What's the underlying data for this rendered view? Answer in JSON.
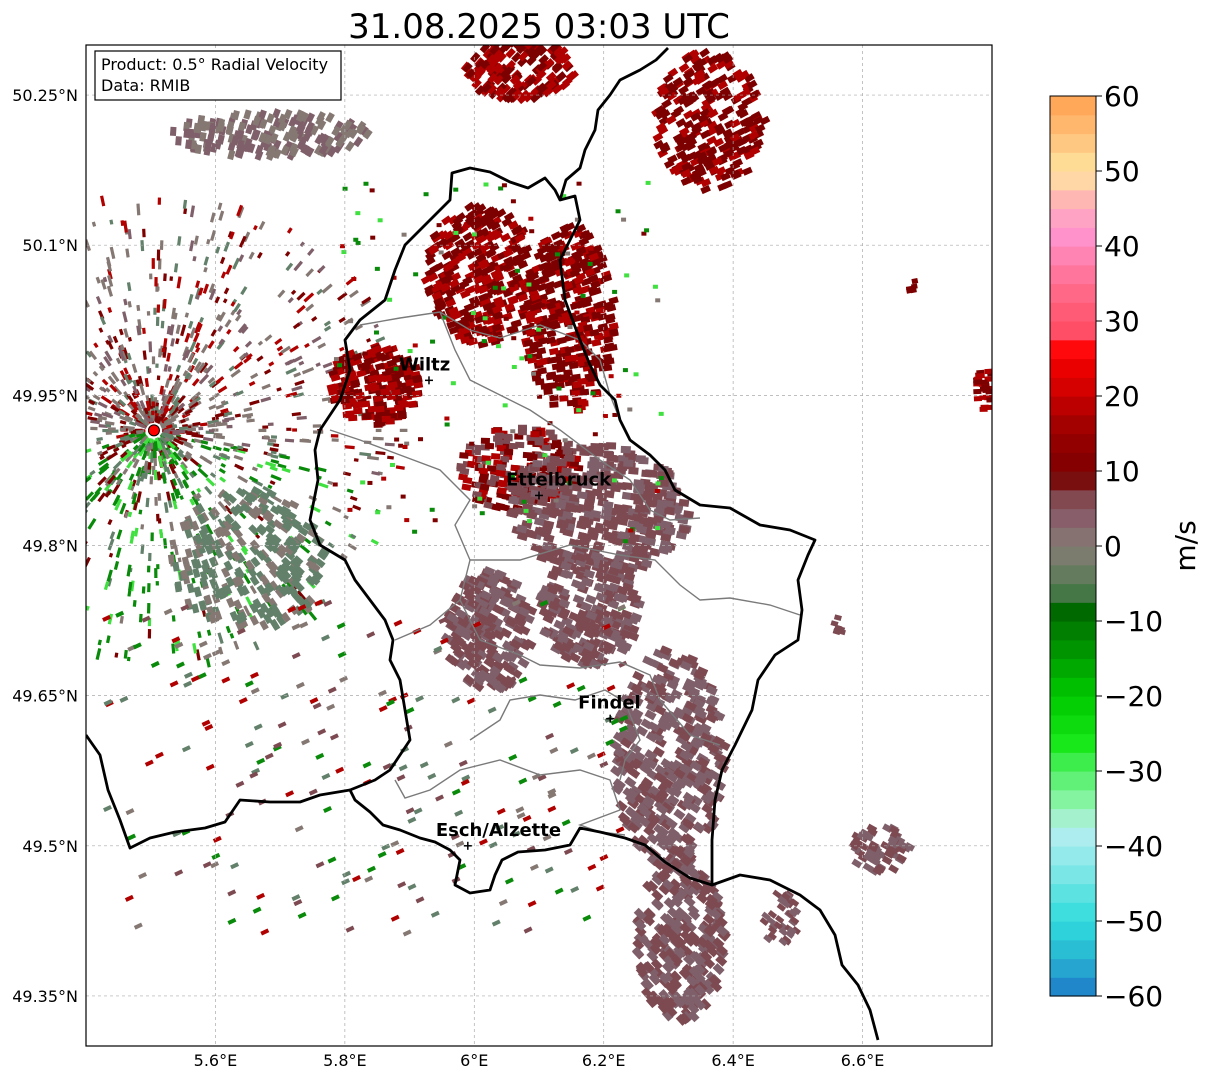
{
  "title": "31.08.2025 03:03 UTC",
  "info": {
    "product": "Product: 0.5° Radial Velocity",
    "data": "Data: RMIB"
  },
  "axes": {
    "lon_ticks": [
      {
        "value": 5.6,
        "label": "5.6°E"
      },
      {
        "value": 5.8,
        "label": "5.8°E"
      },
      {
        "value": 6.0,
        "label": "6°E"
      },
      {
        "value": 6.2,
        "label": "6.2°E"
      },
      {
        "value": 6.4,
        "label": "6.4°E"
      },
      {
        "value": 6.6,
        "label": "6.6°E"
      }
    ],
    "lat_ticks": [
      {
        "value": 50.25,
        "label": "50.25°N"
      },
      {
        "value": 50.1,
        "label": "50.1°N"
      },
      {
        "value": 49.95,
        "label": "49.95°N"
      },
      {
        "value": 49.8,
        "label": "49.8°N"
      },
      {
        "value": 49.65,
        "label": "49.65°N"
      },
      {
        "value": 49.5,
        "label": "49.5°N"
      },
      {
        "value": 49.35,
        "label": "49.35°N"
      }
    ],
    "lon_range": [
      5.4,
      6.8
    ],
    "lat_range": [
      49.3,
      50.3
    ],
    "grid": true
  },
  "cities": [
    {
      "name": "Wiltz",
      "lon": 5.93,
      "lat": 49.965
    },
    {
      "name": "Ettelbruck",
      "lon": 6.1,
      "lat": 49.85
    },
    {
      "name": "Findel",
      "lon": 6.21,
      "lat": 49.627
    },
    {
      "name": "Esch/Alzette",
      "lon": 5.99,
      "lat": 49.5
    }
  ],
  "radar_site": {
    "lon": 5.505,
    "lat": 49.915,
    "color": "#ff0000"
  },
  "colorbar": {
    "label": "m/s",
    "min": -60,
    "max": 60,
    "ticks": [
      {
        "value": 60,
        "label": "60"
      },
      {
        "value": 50,
        "label": "50"
      },
      {
        "value": 40,
        "label": "40"
      },
      {
        "value": 30,
        "label": "30"
      },
      {
        "value": 20,
        "label": "20"
      },
      {
        "value": 10,
        "label": "10"
      },
      {
        "value": 0,
        "label": "0"
      },
      {
        "value": -10,
        "label": "−10"
      },
      {
        "value": -20,
        "label": "−20"
      },
      {
        "value": -30,
        "label": "−30"
      },
      {
        "value": -40,
        "label": "−40"
      },
      {
        "value": -50,
        "label": "−50"
      },
      {
        "value": -60,
        "label": "−60"
      }
    ],
    "stops": [
      {
        "v": -60,
        "c": "#1f78c8"
      },
      {
        "v": -55,
        "c": "#28b4d2"
      },
      {
        "v": -50,
        "c": "#30dcdc"
      },
      {
        "v": -44,
        "c": "#78e6e6"
      },
      {
        "v": -38,
        "c": "#b4eef0"
      },
      {
        "v": -35,
        "c": "#96f5b4"
      },
      {
        "v": -30,
        "c": "#50f064"
      },
      {
        "v": -26,
        "c": "#14e614"
      },
      {
        "v": -20,
        "c": "#00c800"
      },
      {
        "v": -14,
        "c": "#009600"
      },
      {
        "v": -8,
        "c": "#006400"
      },
      {
        "v": -6,
        "c": "#4f7a50"
      },
      {
        "v": 0,
        "c": "#867c74"
      },
      {
        "v": 3,
        "c": "#886470"
      },
      {
        "v": 8,
        "c": "#7f3a40"
      },
      {
        "v": 9,
        "c": "#780000"
      },
      {
        "v": 16,
        "c": "#a00000"
      },
      {
        "v": 22,
        "c": "#dc0000"
      },
      {
        "v": 26,
        "c": "#ff0000"
      },
      {
        "v": 28,
        "c": "#ff4a60"
      },
      {
        "v": 35,
        "c": "#ff6e90"
      },
      {
        "v": 42,
        "c": "#ff96d2"
      },
      {
        "v": 46,
        "c": "#ffb4b4"
      },
      {
        "v": 50,
        "c": "#ffe6a0"
      },
      {
        "v": 55,
        "c": "#ffbe78"
      },
      {
        "v": 60,
        "c": "#ffa050"
      }
    ]
  },
  "palette": {
    "dark_red": "#7d0000",
    "red": "#b00000",
    "brown": "#7d4a52",
    "mauve": "#7f606a",
    "gray": "#857873",
    "gray_green": "#62806a",
    "green": "#0a8a0a",
    "light_green": "#3fe03f"
  }
}
